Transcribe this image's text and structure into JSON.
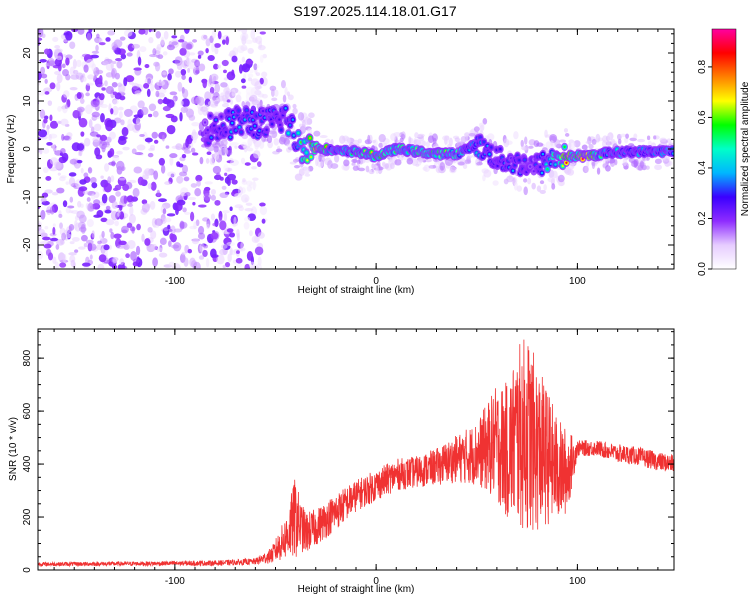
{
  "title": "S197.2025.114.18.01.G17",
  "colors": {
    "snr_line": "#f03232",
    "cmap": [
      "#ffffff",
      "#e6ccff",
      "#8e2cff",
      "#3a00ff",
      "#00b6ff",
      "#00ffc8",
      "#00ff00",
      "#ffff00",
      "#ff8000",
      "#ff0000",
      "#ff00a0"
    ]
  },
  "chart_data": [
    {
      "type": "heatmap",
      "xlabel": "Height of straight line (km)",
      "ylabel": "Frequency (Hz)",
      "xlim": [
        -168,
        148
      ],
      "ylim": [
        -25,
        25
      ],
      "xticks": [
        -100,
        0,
        100
      ],
      "yticks": [
        -20,
        -10,
        0,
        10,
        20
      ],
      "colorbar": {
        "label": "Normalized spectral amplitude",
        "range": [
          0,
          0.95
        ],
        "ticks": [
          0.0,
          0.2,
          0.4,
          0.6,
          0.8
        ]
      },
      "ridge": {
        "x": [
          -85,
          -75,
          -65,
          -55,
          -45,
          -38,
          -30,
          -20,
          -10,
          0,
          10,
          20,
          30,
          40,
          50,
          60,
          70,
          80,
          88,
          95,
          105,
          115,
          125,
          135,
          148
        ],
        "y": [
          4,
          5,
          6,
          5,
          7,
          0.5,
          0.5,
          -0.5,
          -0.5,
          -1.5,
          0,
          -0.5,
          -1,
          -1,
          1,
          -2,
          -3,
          -3.5,
          -2,
          -1.5,
          -1.5,
          -0.8,
          -0.6,
          -0.5,
          -0.5
        ],
        "amplitude": [
          0.3,
          0.35,
          0.4,
          0.35,
          0.4,
          0.55,
          0.85,
          0.5,
          0.6,
          0.7,
          0.6,
          0.6,
          0.65,
          0.6,
          0.4,
          0.35,
          0.35,
          0.3,
          0.6,
          0.8,
          0.85,
          0.45,
          0.45,
          0.45,
          0.5
        ]
      },
      "noise_region": {
        "x": [
          -168,
          -60
        ],
        "amplitude": [
          0.05,
          0.2
        ]
      }
    },
    {
      "type": "line",
      "xlabel": "Height of straight line (km)",
      "ylabel": "SNR (10 * v/v)",
      "xlim": [
        -168,
        148
      ],
      "ylim": [
        0,
        910
      ],
      "xticks": [
        -100,
        0,
        100
      ],
      "yticks": [
        0,
        200,
        400,
        600,
        800
      ],
      "series": [
        {
          "x": [
            -168,
            -120,
            -80,
            -60,
            -52,
            -45,
            -40,
            -38,
            -35,
            -30,
            -20,
            -10,
            0,
            10,
            20,
            30,
            40,
            50,
            60,
            65,
            70,
            75,
            80,
            85,
            90,
            95,
            100,
            110,
            120,
            130,
            140,
            148
          ],
          "mean": [
            22,
            24,
            26,
            32,
            55,
            120,
            200,
            170,
            140,
            160,
            220,
            280,
            320,
            360,
            370,
            390,
            420,
            440,
            480,
            450,
            500,
            520,
            460,
            430,
            380,
            370,
            460,
            460,
            440,
            430,
            410,
            400
          ],
          "spread": [
            8,
            8,
            10,
            12,
            30,
            80,
            160,
            100,
            80,
            70,
            70,
            60,
            60,
            60,
            60,
            70,
            90,
            120,
            220,
            260,
            340,
            380,
            320,
            260,
            200,
            160,
            30,
            30,
            35,
            35,
            35,
            35
          ]
        }
      ]
    }
  ]
}
